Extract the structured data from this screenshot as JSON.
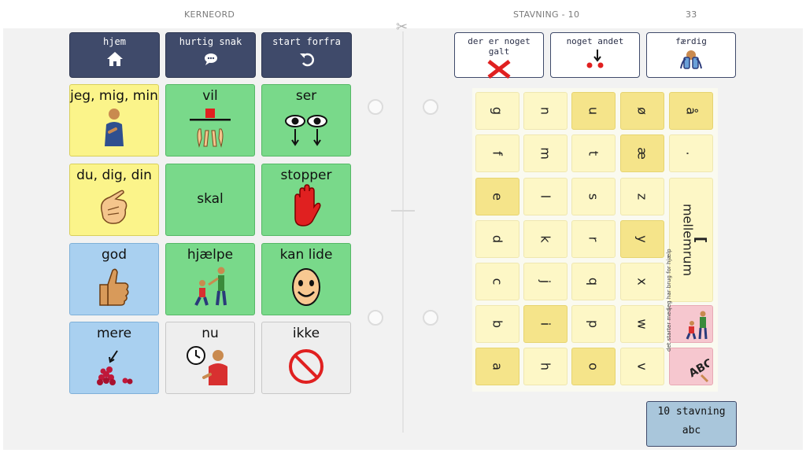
{
  "left": {
    "header": "KERNEORD",
    "toolbar": [
      {
        "label": "hjem",
        "icon": "home-icon"
      },
      {
        "label": "hurtig snak",
        "icon": "chat-bubble-icon"
      },
      {
        "label": "start forfra",
        "icon": "undo-icon"
      }
    ],
    "cells": [
      {
        "label": "jeg, mig, min",
        "color": "#fbf48a",
        "icon": "person-pointing-self-icon"
      },
      {
        "label": "vil",
        "color": "#79d98a",
        "icon": "hands-reaching-icon"
      },
      {
        "label": "ser",
        "color": "#79d98a",
        "icon": "eyes-icon"
      },
      {
        "label": "du, dig, din",
        "color": "#fbf48a",
        "icon": "pointing-finger-icon"
      },
      {
        "label": "skal",
        "color": "#79d98a",
        "icon": ""
      },
      {
        "label": "stopper",
        "color": "#79d98a",
        "icon": "stop-hand-icon"
      },
      {
        "label": "god",
        "color": "#a9d0f0",
        "icon": "thumbs-up-icon"
      },
      {
        "label": "hjælpe",
        "color": "#79d98a",
        "icon": "helping-people-icon"
      },
      {
        "label": "kan lide",
        "color": "#79d98a",
        "icon": "smiling-face-icon"
      },
      {
        "label": "mere",
        "color": "#a9d0f0",
        "icon": "berries-pile-icon"
      },
      {
        "label": "nu",
        "color": "#eeeeee",
        "icon": "clock-person-icon"
      },
      {
        "label": "ikke",
        "color": "#eeeeee",
        "icon": "prohibited-icon"
      }
    ]
  },
  "right": {
    "header": "STAVNING - 10",
    "page_number": "33",
    "toolbar": [
      {
        "label": "der er noget galt",
        "icon": "red-x-icon"
      },
      {
        "label": "noget andet",
        "icon": "arrow-dots-icon"
      },
      {
        "label": "færdig",
        "icon": "binoculars-icon"
      }
    ],
    "keyboard": {
      "rows": [
        [
          "g",
          "n",
          "u",
          "ø",
          "å"
        ],
        [
          "f",
          "m",
          "t",
          "æ",
          "."
        ],
        [
          "e",
          "l",
          "s",
          "z"
        ],
        [
          "d",
          "k",
          "r",
          "y"
        ],
        [
          "c",
          "j",
          "q",
          "x"
        ],
        [
          "b",
          "i",
          "p",
          "w"
        ],
        [
          "a",
          "h",
          "o",
          "v"
        ]
      ],
      "space_label": "mellemrum",
      "special_keys": [
        {
          "label": "jeg har brug for hjælp",
          "icon": "helping-people-icon"
        },
        {
          "label": "det starter med",
          "icon": "abc-letters-icon"
        }
      ]
    },
    "footer_button": {
      "line1": "10 stavning",
      "line2": "abc"
    }
  }
}
